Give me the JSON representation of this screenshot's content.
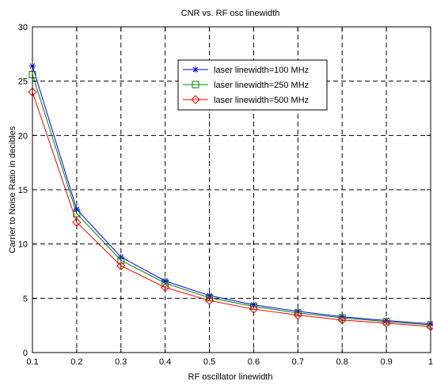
{
  "chart_data": {
    "type": "line",
    "title": "CNR vs. RF osc linewidth",
    "xlabel": "RF oscillator linewidth",
    "ylabel": "Carrier to Noise Ratio in decibles",
    "xlim": [
      0.1,
      1
    ],
    "ylim": [
      0,
      30
    ],
    "x_ticks": [
      "0.1",
      "0.2",
      "0.3",
      "0.4",
      "0.5",
      "0.6",
      "0.7",
      "0.8",
      "0.9",
      "1"
    ],
    "y_ticks": [
      "0",
      "5",
      "10",
      "15",
      "20",
      "25",
      "30"
    ],
    "grid": true,
    "legend_position": "top-right",
    "x": [
      0.1,
      0.2,
      0.3,
      0.4,
      0.5,
      0.6,
      0.7,
      0.8,
      0.9,
      1.0
    ],
    "series": [
      {
        "name": "laser linewidth=100 MHz",
        "color": "#0000ff",
        "marker": "asterisk",
        "values": [
          26.4,
          13.2,
          8.8,
          6.6,
          5.25,
          4.4,
          3.8,
          3.3,
          2.95,
          2.65
        ]
      },
      {
        "name": "laser linewidth=250 MHz",
        "color": "#008000",
        "marker": "square",
        "values": [
          25.6,
          12.8,
          8.5,
          6.4,
          5.05,
          4.25,
          3.65,
          3.2,
          2.85,
          2.55
        ]
      },
      {
        "name": "laser linewidth=500 MHz",
        "color": "#ff0000",
        "marker": "diamond",
        "values": [
          24.0,
          12.0,
          8.0,
          6.0,
          4.8,
          4.0,
          3.45,
          3.0,
          2.7,
          2.4
        ]
      }
    ]
  }
}
